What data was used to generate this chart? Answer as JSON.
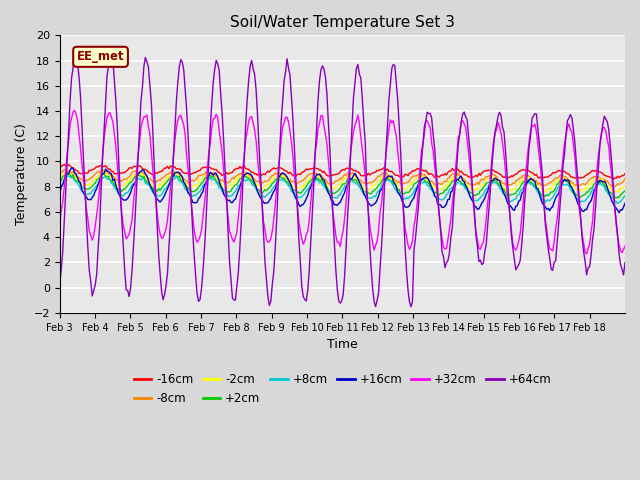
{
  "title": "Soil/Water Temperature Set 3",
  "xlabel": "Time",
  "ylabel": "Temperature (C)",
  "ylim": [
    -2,
    20
  ],
  "yticks": [
    -2,
    0,
    2,
    4,
    6,
    8,
    10,
    12,
    14,
    16,
    18,
    20
  ],
  "xtick_labels": [
    "Feb 3",
    "Feb 4",
    "Feb 5",
    "Feb 6",
    "Feb 7",
    "Feb 8",
    "Feb 9",
    "Feb 10",
    "Feb 11",
    "Feb 12",
    "Feb 13",
    "Feb 14",
    "Feb 15",
    "Feb 16",
    "Feb 17",
    "Feb 18"
  ],
  "series": {
    "-16cm": {
      "color": "#ff0000",
      "base": 9.4,
      "amp": 0.3,
      "phase": 0.5,
      "trend": -0.03
    },
    "-8cm": {
      "color": "#ff8800",
      "base": 8.9,
      "amp": 0.4,
      "phase": 0.3,
      "trend": -0.03
    },
    "-2cm": {
      "color": "#ffff00",
      "base": 8.6,
      "amp": 0.5,
      "phase": 0.1,
      "trend": -0.03
    },
    "+2cm": {
      "color": "#00cc00",
      "base": 8.4,
      "amp": 0.6,
      "phase": 0.0,
      "trend": -0.04
    },
    "+8cm": {
      "color": "#00cccc",
      "base": 8.1,
      "amp": 0.7,
      "phase": -0.2,
      "trend": -0.04
    },
    "+16cm": {
      "color": "#0000cc",
      "base": 8.2,
      "amp": 1.2,
      "phase": -0.5,
      "trend": -0.06
    },
    "+32cm": {
      "color": "#ff00ff",
      "base": 9.0,
      "amp": 5.0,
      "phase": -1.0,
      "trend": -0.08
    },
    "+64cm": {
      "color": "#8800bb",
      "base": 9.0,
      "amp": 9.5,
      "phase": -1.2,
      "trend": -0.1
    }
  },
  "watermark_text": "EE_met",
  "fig_facecolor": "#d8d8d8",
  "ax_facecolor": "#e8e8e8",
  "grid_color": "#ffffff",
  "n_days": 16,
  "pts_per_day": 24
}
